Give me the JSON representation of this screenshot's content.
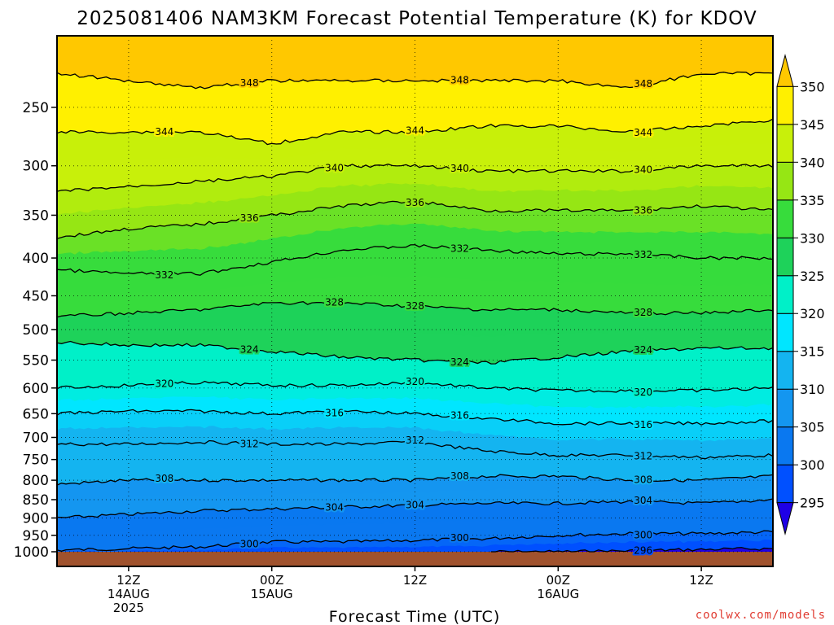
{
  "chart_data": {
    "type": "heatmap",
    "title": "2025081406 NAM3KM Forecast Potential Temperature (K) for KDOV",
    "xlabel": "Forecast Time (UTC)",
    "ylabel": "",
    "y_axis": {
      "scale": "log",
      "reversed": true,
      "range": [
        1000,
        200
      ],
      "ticks": [
        1000,
        950,
        900,
        850,
        800,
        750,
        700,
        650,
        600,
        550,
        500,
        450,
        400,
        350,
        300,
        250
      ]
    },
    "x_axis": {
      "range_hours": [
        0,
        60
      ],
      "ticks": [
        {
          "hour": 6,
          "line1": "12Z",
          "line2": "14AUG",
          "line3": "2025"
        },
        {
          "hour": 18,
          "line1": "00Z",
          "line2": "15AUG",
          "line3": ""
        },
        {
          "hour": 30,
          "line1": "12Z",
          "line2": "",
          "line3": ""
        },
        {
          "hour": 42,
          "line1": "00Z",
          "line2": "16AUG",
          "line3": ""
        },
        {
          "hour": 54,
          "line1": "12Z",
          "line2": "",
          "line3": ""
        }
      ]
    },
    "grid": true,
    "colorbar": {
      "placement": "right",
      "levels": [
        295,
        300,
        305,
        310,
        315,
        320,
        325,
        330,
        335,
        340,
        345,
        350
      ],
      "colors": [
        "#1e00e6",
        "#0050ff",
        "#0a78f0",
        "#1496f0",
        "#14b4f0",
        "#00e6ff",
        "#00f0c8",
        "#1ed25a",
        "#37dc3c",
        "#96e614",
        "#c8f00a",
        "#fff000",
        "#ffc800"
      ]
    },
    "contour_interval_K": 4,
    "contour_levels": [
      296,
      300,
      304,
      308,
      312,
      316,
      320,
      324,
      328,
      332,
      336,
      340,
      344,
      348
    ],
    "hours": [
      0,
      6,
      12,
      18,
      24,
      30,
      36,
      42,
      48,
      54,
      60
    ],
    "isentrope_pressures_hPa": [
      {
        "theta": 296,
        "p": [
          null,
          null,
          null,
          null,
          null,
          null,
          null,
          1000,
          997,
          993,
          990
        ]
      },
      {
        "theta": 300,
        "p": [
          995,
          990,
          985,
          970,
          970,
          965,
          960,
          950,
          945,
          945,
          940
        ]
      },
      {
        "theta": 304,
        "p": [
          900,
          890,
          880,
          875,
          870,
          865,
          860,
          860,
          855,
          860,
          850
        ]
      },
      {
        "theta": 308,
        "p": [
          810,
          800,
          800,
          800,
          800,
          800,
          790,
          790,
          800,
          800,
          790
        ]
      },
      {
        "theta": 312,
        "p": [
          715,
          715,
          710,
          715,
          715,
          710,
          730,
          740,
          740,
          745,
          740
        ]
      },
      {
        "theta": 316,
        "p": [
          650,
          645,
          645,
          650,
          645,
          650,
          660,
          670,
          670,
          670,
          665
        ]
      },
      {
        "theta": 320,
        "p": [
          600,
          595,
          590,
          595,
          595,
          590,
          600,
          605,
          605,
          605,
          600
        ]
      },
      {
        "theta": 324,
        "p": [
          520,
          525,
          525,
          535,
          545,
          550,
          555,
          545,
          535,
          530,
          530
        ]
      },
      {
        "theta": 328,
        "p": [
          480,
          475,
          470,
          460,
          460,
          465,
          470,
          470,
          475,
          475,
          470
        ]
      },
      {
        "theta": 332,
        "p": [
          415,
          420,
          420,
          405,
          390,
          385,
          390,
          395,
          395,
          400,
          400
        ]
      },
      {
        "theta": 336,
        "p": [
          375,
          365,
          360,
          350,
          340,
          335,
          345,
          345,
          345,
          340,
          345
        ]
      },
      {
        "theta": 340,
        "p": [
          325,
          320,
          315,
          310,
          300,
          300,
          305,
          305,
          305,
          300,
          300
        ]
      },
      {
        "theta": 344,
        "p": [
          270,
          270,
          270,
          280,
          270,
          270,
          265,
          265,
          270,
          265,
          260
        ]
      },
      {
        "theta": 348,
        "p": [
          225,
          230,
          235,
          230,
          230,
          230,
          230,
          230,
          235,
          225,
          225
        ]
      }
    ],
    "surface_fill_color": "#a0522d"
  },
  "branding": {
    "credit": "coolwx.com/models",
    "credit_color": "#e03c32"
  }
}
